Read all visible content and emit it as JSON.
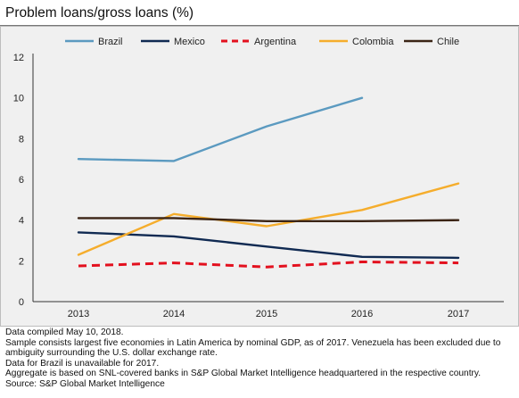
{
  "title": "Problem loans/gross loans (%)",
  "notes": [
    "Data compiled May 10, 2018.",
    "Sample consists largest five economies in Latin America by nominal GDP, as of 2017. Venezuela has been excluded due to",
    "ambiguity surrounding the U.S. dollar exchange rate.",
    "Data for Brazil is unavailable for 2017.",
    "Aggregate is based on SNL-covered banks in S&P Global Market Intelligence headquartered in the respective country.",
    "Source: S&P Global Market Intelligence"
  ],
  "chart_data": {
    "type": "line",
    "title": "Problem loans/gross loans (%)",
    "categories": [
      "2013",
      "2014",
      "2015",
      "2016",
      "2017"
    ],
    "ylim": [
      0,
      12
    ],
    "yticks": [
      "0",
      "2",
      "4",
      "6",
      "8",
      "10",
      "12"
    ],
    "grid": false,
    "legend_position": "top",
    "series": [
      {
        "name": "Brazil",
        "color": "#5b9ac0",
        "dashed": false,
        "values": [
          7.0,
          6.9,
          8.6,
          10.0,
          null
        ]
      },
      {
        "name": "Mexico",
        "color": "#102a52",
        "dashed": false,
        "values": [
          3.4,
          3.2,
          2.7,
          2.2,
          2.15
        ]
      },
      {
        "name": "Argentina",
        "color": "#e3101e",
        "dashed": true,
        "values": [
          1.75,
          1.9,
          1.7,
          1.95,
          1.9
        ]
      },
      {
        "name": "Colombia",
        "color": "#f5ad2c",
        "dashed": false,
        "values": [
          2.3,
          4.3,
          3.7,
          4.5,
          5.8
        ]
      },
      {
        "name": "Chile",
        "color": "#3b2415",
        "dashed": false,
        "values": [
          4.1,
          4.1,
          3.95,
          3.95,
          4.0
        ]
      }
    ]
  }
}
